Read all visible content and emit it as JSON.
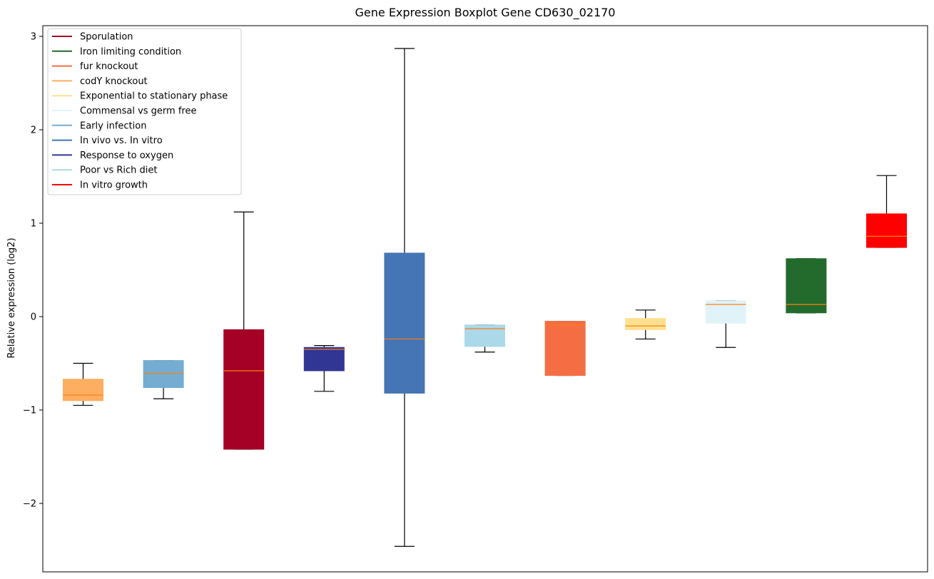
{
  "chart_data": {
    "type": "boxplot",
    "title": "Gene Expression Boxplot Gene CD630_02170",
    "xlabel": "",
    "ylabel": "Relative expression (log2)",
    "ylim": [
      -2.7,
      3.1
    ],
    "yticks": [
      -2,
      -1,
      0,
      1,
      2,
      3
    ],
    "ytick_labels": [
      "−2",
      "−1",
      "0",
      "1",
      "2",
      "3"
    ],
    "legend": {
      "position": "top-left",
      "entries": [
        {
          "label": "Sporulation",
          "color": "#a50026"
        },
        {
          "label": "Iron limiting condition",
          "color": "#236b2c"
        },
        {
          "label": "fur knockout",
          "color": "#f46d43"
        },
        {
          "label": "codY knockout",
          "color": "#fdae61"
        },
        {
          "label": "Exponential to stationary phase",
          "color": "#fee090"
        },
        {
          "label": "Commensal vs germ free",
          "color": "#e0f3f8"
        },
        {
          "label": "Early infection",
          "color": "#74add1"
        },
        {
          "label": "In vivo vs. In vitro",
          "color": "#4575b4"
        },
        {
          "label": "Response to oxygen",
          "color": "#313695"
        },
        {
          "label": "Poor vs Rich diet",
          "color": "#abd9e9"
        },
        {
          "label": "In vitro growth",
          "color": "#ff0000"
        }
      ]
    },
    "boxes": [
      {
        "name": "codY knockout",
        "color": "#fdae61",
        "whisker_low": -0.95,
        "q1": -0.9,
        "median": -0.84,
        "q3": -0.67,
        "whisker_high": -0.5
      },
      {
        "name": "Early infection",
        "color": "#74add1",
        "whisker_low": -0.88,
        "q1": -0.76,
        "median": -0.61,
        "q3": -0.47,
        "whisker_high": -0.47
      },
      {
        "name": "Sporulation",
        "color": "#a50026",
        "whisker_low": -1.42,
        "q1": -1.42,
        "median": -0.58,
        "q3": -0.14,
        "whisker_high": 1.12
      },
      {
        "name": "Response to oxygen",
        "color": "#313695",
        "whisker_low": -0.8,
        "q1": -0.58,
        "median": -0.35,
        "q3": -0.33,
        "whisker_high": -0.31
      },
      {
        "name": "In vivo vs. In vitro",
        "color": "#4575b4",
        "whisker_low": -2.46,
        "q1": -0.82,
        "median": -0.24,
        "q3": 0.68,
        "whisker_high": 2.87
      },
      {
        "name": "Poor vs Rich diet",
        "color": "#abd9e9",
        "whisker_low": -0.38,
        "q1": -0.32,
        "median": -0.13,
        "q3": -0.09,
        "whisker_high": -0.09
      },
      {
        "name": "fur knockout",
        "color": "#f46d43",
        "whisker_low": -0.63,
        "q1": -0.63,
        "median": -0.09,
        "q3": -0.05,
        "whisker_high": -0.05
      },
      {
        "name": "Exponential to stationary phase",
        "color": "#fee090",
        "whisker_low": -0.24,
        "q1": -0.14,
        "median": -0.1,
        "q3": -0.02,
        "whisker_high": 0.07
      },
      {
        "name": "Commensal vs germ free",
        "color": "#e0f3f8",
        "whisker_low": -0.33,
        "q1": -0.07,
        "median": 0.13,
        "q3": 0.17,
        "whisker_high": 0.17
      },
      {
        "name": "Iron limiting condition",
        "color": "#236b2c",
        "whisker_low": 0.04,
        "q1": 0.04,
        "median": 0.13,
        "q3": 0.62,
        "whisker_high": 0.62
      },
      {
        "name": "In vitro growth",
        "color": "#ff0000",
        "whisker_low": 0.74,
        "q1": 0.74,
        "median": 0.86,
        "q3": 1.1,
        "whisker_high": 1.51
      }
    ]
  }
}
